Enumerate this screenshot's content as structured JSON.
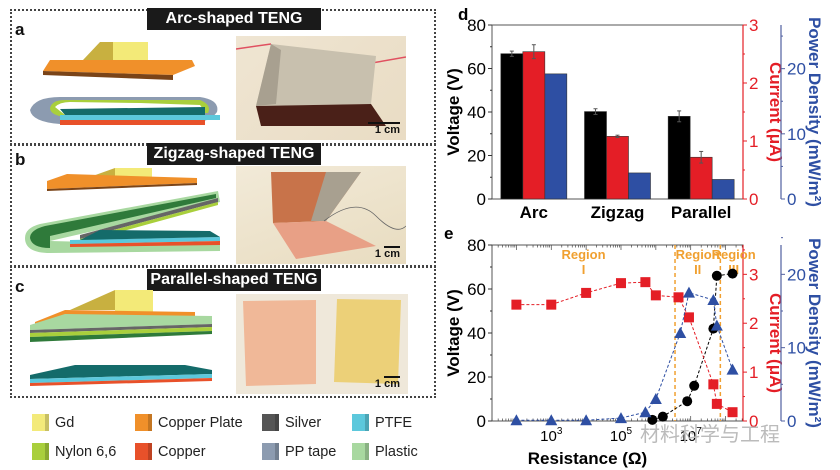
{
  "panels": {
    "a": {
      "letter": "a",
      "title": "Arc-shaped TENG",
      "scale": "1 cm"
    },
    "b": {
      "letter": "b",
      "title": "Zigzag-shaped TENG",
      "scale": "1 cm"
    },
    "c": {
      "letter": "c",
      "title": "Parallel-shaped TENG",
      "scale": "1 cm"
    }
  },
  "legend": [
    {
      "label": "Gd",
      "color": "#f3ea7a"
    },
    {
      "label": "Copper Plate",
      "color": "#f0902a"
    },
    {
      "label": "Silver",
      "color": "#555555"
    },
    {
      "label": "PTFE",
      "color": "#5cc8dc"
    },
    {
      "label": "Nylon 6,6",
      "color": "#a9cf3c"
    },
    {
      "label": "Copper",
      "color": "#e8512a"
    },
    {
      "label": "PP tape",
      "color": "#8c9bb0"
    },
    {
      "label": "Plastic",
      "color": "#a8d8a0"
    }
  ],
  "colors": {
    "voltage": "#000000",
    "current": "#e41e26",
    "power": "#2e4fa3",
    "region": "#f0a030",
    "current_axis": "#e41e26",
    "power_axis": "#5060a0"
  },
  "watermark": "材料科学与工程",
  "chart_data": [
    {
      "panel": "d",
      "type": "bar",
      "categories": [
        "Arc",
        "Zigzag",
        "Parallel"
      ],
      "series": [
        {
          "name": "Voltage (V)",
          "axis": "left",
          "values": [
            66.8,
            40.2,
            38.0
          ],
          "errors": [
            1.2,
            1.3,
            2.5
          ]
        },
        {
          "name": "Current (μA)",
          "axis": "right1",
          "values": [
            2.54,
            1.08,
            0.72
          ],
          "errors": [
            0.12,
            0.02,
            0.1
          ]
        },
        {
          "name": "Power Density (mW/m²)",
          "axis": "right2",
          "values": [
            19.2,
            4.0,
            3.0
          ]
        }
      ],
      "ylabel": "Voltage (V)",
      "ylim": [
        0,
        80
      ],
      "yticks": [
        "0",
        "20",
        "40",
        "60",
        "80"
      ],
      "y2label": "Current (μA)",
      "y2lim": [
        0,
        3
      ],
      "y2ticks": [
        "0",
        "1",
        "2",
        "3"
      ],
      "y3label": "Power Density (mW/m²)",
      "y3lim": [
        0,
        26.7
      ],
      "y3ticks": [
        "0",
        "10",
        "20"
      ]
    },
    {
      "panel": "e",
      "type": "scatter",
      "xlabel": "Resistance (Ω)",
      "xscale": "log",
      "xlim_log10": [
        1,
        7.9
      ],
      "xticks": [
        {
          "exp": 3,
          "label": "10",
          "sup": "3"
        },
        {
          "exp": 5,
          "label": "10",
          "sup": "5"
        },
        {
          "exp": 7,
          "label": "10",
          "sup": "7"
        }
      ],
      "ylabel": "Voltage (V)",
      "ylim": [
        0,
        80
      ],
      "yticks": [
        "0",
        "20",
        "40",
        "60",
        "80"
      ],
      "y2label": "Current (μA)",
      "y2lim": [
        0,
        3.6
      ],
      "y2ticks": [
        "0",
        "1",
        "2",
        "3"
      ],
      "y3label": "Power Density (mW/m²)",
      "y3lim": [
        0,
        24
      ],
      "y3ticks": [
        "0",
        "10",
        "20"
      ],
      "regions": [
        {
          "label": "Region",
          "numeral": "I"
        },
        {
          "label": "Region",
          "numeral": "II"
        },
        {
          "label": "Region",
          "numeral": "III"
        }
      ],
      "region_boundaries_log10": [
        6.55,
        7.85
      ],
      "series": [
        {
          "name": "Voltage",
          "axis": "left",
          "marker": "circle",
          "x_log10": [
            1.0,
            3.0,
            4.0,
            5.0,
            5.9,
            6.2,
            6.9,
            7.3,
            7.85,
            8.0,
            8.0
          ],
          "points": [
            [
              5.9,
              0.5
            ],
            [
              6.2,
              2.0
            ],
            [
              6.9,
              9.0
            ],
            [
              7.1,
              16.0
            ],
            [
              7.65,
              42.0
            ],
            [
              7.75,
              66.0
            ],
            [
              8.2,
              67.0
            ]
          ]
        },
        {
          "name": "Current",
          "axis": "right1",
          "marker": "square",
          "points": [
            [
              2.0,
              2.38
            ],
            [
              3.0,
              2.38
            ],
            [
              4.0,
              2.62
            ],
            [
              5.0,
              2.82
            ],
            [
              5.7,
              2.84
            ],
            [
              6.0,
              2.57
            ],
            [
              6.65,
              2.53
            ],
            [
              6.95,
              2.12
            ],
            [
              7.65,
              0.75
            ],
            [
              7.75,
              0.35
            ],
            [
              8.2,
              0.18
            ]
          ]
        },
        {
          "name": "Power Density",
          "axis": "right2",
          "marker": "triangle",
          "points": [
            [
              2.0,
              0.1
            ],
            [
              3.0,
              0.1
            ],
            [
              4.0,
              0.1
            ],
            [
              5.0,
              0.4
            ],
            [
              5.7,
              1.2
            ],
            [
              6.0,
              3.0
            ],
            [
              6.7,
              12.0
            ],
            [
              6.95,
              17.5
            ],
            [
              7.65,
              16.5
            ],
            [
              7.75,
              13.0
            ],
            [
              8.2,
              7.0
            ]
          ]
        }
      ]
    }
  ]
}
